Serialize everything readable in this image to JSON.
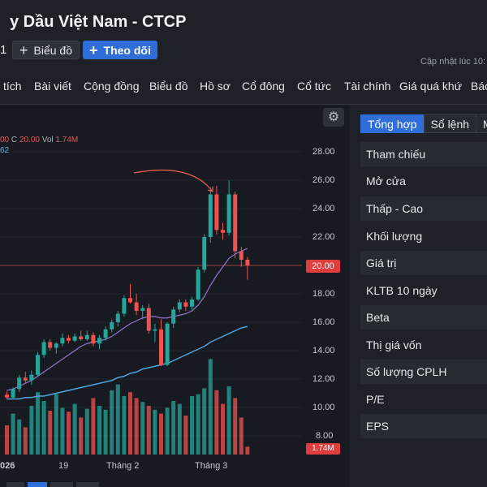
{
  "header": {
    "title": "y Dầu Việt Nam - CTCP",
    "stock_code_fragment": "1",
    "chart_button": "Biểu đồ",
    "follow_button": "Theo dõi",
    "updated_label": "Cập nhật lúc  10:"
  },
  "nav": {
    "items": [
      "tích",
      "Bài viết",
      "Cộng đồng",
      "Biểu đồ",
      "Hồ sơ",
      "Cổ đông",
      "Cổ tức",
      "Tài chính",
      "Giá quá khứ",
      "Báo"
    ]
  },
  "chart": {
    "legend_ohlc_prefix": "00",
    "legend_close_label": "C",
    "legend_close_value": "20.00",
    "legend_vol_label": "Vol",
    "legend_vol_value": "1.74M",
    "legend_ma": "62",
    "last_price_tag": "20.00",
    "last_volume_tag": "1.74M",
    "up_color": "#26a69a",
    "down_color": "#ef5350",
    "ma_short_color": "#9575cd",
    "ma_long_color": "#4fa3e0",
    "annotation_color": "#e35b4f"
  },
  "chart_data": {
    "type": "candlestick",
    "y_ticks": [
      "28.00",
      "26.00",
      "24.00",
      "22.00",
      "20.00",
      "18.00",
      "16.00",
      "14.00",
      "12.00",
      "10.00",
      "8.00"
    ],
    "ylim": [
      7.4,
      28.6
    ],
    "x_tick_labels": [
      "026",
      "19",
      "Tháng 2",
      "Tháng 3"
    ],
    "candles": [
      {
        "o": 10.9,
        "h": 11.1,
        "l": 10.6,
        "c": 10.7
      },
      {
        "o": 10.7,
        "h": 11.4,
        "l": 10.6,
        "c": 11.3
      },
      {
        "o": 11.3,
        "h": 12.3,
        "l": 11.1,
        "c": 12.1
      },
      {
        "o": 12.1,
        "h": 12.5,
        "l": 11.7,
        "c": 11.9
      },
      {
        "o": 11.9,
        "h": 12.6,
        "l": 11.6,
        "c": 12.3
      },
      {
        "o": 12.3,
        "h": 13.9,
        "l": 12.2,
        "c": 13.7
      },
      {
        "o": 13.7,
        "h": 14.8,
        "l": 13.5,
        "c": 14.6
      },
      {
        "o": 14.6,
        "h": 14.8,
        "l": 14.0,
        "c": 14.2
      },
      {
        "o": 14.2,
        "h": 14.6,
        "l": 13.8,
        "c": 14.5
      },
      {
        "o": 14.5,
        "h": 15.2,
        "l": 14.3,
        "c": 14.9
      },
      {
        "o": 14.9,
        "h": 15.1,
        "l": 14.5,
        "c": 14.7
      },
      {
        "o": 14.7,
        "h": 15.2,
        "l": 14.6,
        "c": 15.0
      },
      {
        "o": 15.0,
        "h": 15.4,
        "l": 14.7,
        "c": 14.8
      },
      {
        "o": 14.8,
        "h": 15.4,
        "l": 14.7,
        "c": 15.1
      },
      {
        "o": 15.1,
        "h": 15.3,
        "l": 14.3,
        "c": 14.5
      },
      {
        "o": 14.5,
        "h": 15.1,
        "l": 14.1,
        "c": 14.9
      },
      {
        "o": 14.9,
        "h": 15.7,
        "l": 14.7,
        "c": 15.5
      },
      {
        "o": 15.5,
        "h": 16.2,
        "l": 15.3,
        "c": 16.0
      },
      {
        "o": 16.0,
        "h": 16.8,
        "l": 15.7,
        "c": 16.6
      },
      {
        "o": 16.6,
        "h": 17.9,
        "l": 16.4,
        "c": 17.7
      },
      {
        "o": 17.7,
        "h": 18.7,
        "l": 17.3,
        "c": 17.4
      },
      {
        "o": 17.4,
        "h": 18.0,
        "l": 16.5,
        "c": 16.8
      },
      {
        "o": 16.8,
        "h": 17.2,
        "l": 16.2,
        "c": 17.0
      },
      {
        "o": 17.0,
        "h": 17.3,
        "l": 15.2,
        "c": 15.4
      },
      {
        "o": 15.4,
        "h": 15.9,
        "l": 14.6,
        "c": 15.5
      },
      {
        "o": 15.5,
        "h": 16.2,
        "l": 12.9,
        "c": 13.0
      },
      {
        "o": 13.0,
        "h": 16.0,
        "l": 12.9,
        "c": 15.9
      },
      {
        "o": 15.9,
        "h": 17.1,
        "l": 15.6,
        "c": 16.9
      },
      {
        "o": 16.9,
        "h": 17.6,
        "l": 16.7,
        "c": 17.4
      },
      {
        "o": 17.4,
        "h": 17.6,
        "l": 16.8,
        "c": 17.1
      },
      {
        "o": 17.1,
        "h": 17.8,
        "l": 16.9,
        "c": 17.6
      },
      {
        "o": 17.6,
        "h": 19.9,
        "l": 17.5,
        "c": 19.7
      },
      {
        "o": 19.7,
        "h": 22.2,
        "l": 19.5,
        "c": 22.0
      },
      {
        "o": 22.0,
        "h": 25.5,
        "l": 21.6,
        "c": 25.0
      },
      {
        "o": 25.0,
        "h": 25.6,
        "l": 22.2,
        "c": 22.5
      },
      {
        "o": 22.5,
        "h": 23.0,
        "l": 21.8,
        "c": 22.3
      },
      {
        "o": 22.3,
        "h": 26.0,
        "l": 22.1,
        "c": 25.0
      },
      {
        "o": 25.0,
        "h": 25.2,
        "l": 20.5,
        "c": 21.0
      },
      {
        "o": 21.0,
        "h": 21.3,
        "l": 19.9,
        "c": 20.4
      },
      {
        "o": 20.4,
        "h": 20.6,
        "l": 19.0,
        "c": 20.0
      }
    ],
    "volumes": [
      30,
      42,
      36,
      28,
      50,
      64,
      55,
      45,
      62,
      48,
      44,
      52,
      38,
      47,
      58,
      50,
      46,
      66,
      72,
      60,
      64,
      58,
      54,
      50,
      46,
      42,
      48,
      55,
      52,
      40,
      60,
      62,
      68,
      98,
      66,
      52,
      70,
      58,
      38,
      8
    ],
    "volume_max": 100,
    "ma_short": [
      11.2,
      11.3,
      11.5,
      11.7,
      11.9,
      12.2,
      12.5,
      12.8,
      13.1,
      13.4,
      13.7,
      14.0,
      14.3,
      14.5,
      14.6,
      14.7,
      14.8,
      15.0,
      15.3,
      15.6,
      15.9,
      16.1,
      16.3,
      16.4,
      16.4,
      16.3,
      16.3,
      16.4,
      16.5,
      16.6,
      16.8,
      17.2,
      17.8,
      18.6,
      19.3,
      19.9,
      20.5,
      20.8,
      21.0,
      21.2
    ],
    "ma_long": [
      10.6,
      10.6,
      10.6,
      10.7,
      10.7,
      10.8,
      10.8,
      10.9,
      11.0,
      11.1,
      11.2,
      11.3,
      11.4,
      11.5,
      11.6,
      11.7,
      11.8,
      11.9,
      12.1,
      12.2,
      12.4,
      12.5,
      12.7,
      12.8,
      12.9,
      13.0,
      13.1,
      13.3,
      13.5,
      13.7,
      13.9,
      14.1,
      14.3,
      14.6,
      14.8,
      15.0,
      15.2,
      15.4,
      15.6,
      15.7
    ]
  },
  "right_panel": {
    "tabs": [
      "Tổng hợp",
      "Sổ lệnh",
      "Mu"
    ],
    "rows": [
      "Tham chiếu",
      "Mở cửa",
      "Thấp - Cao",
      "Khối lượng",
      "Giá trị",
      "KLTB 10 ngày",
      "Beta",
      "Thị giá vốn",
      "Số lượng CPLH",
      "P/E",
      "EPS"
    ]
  }
}
